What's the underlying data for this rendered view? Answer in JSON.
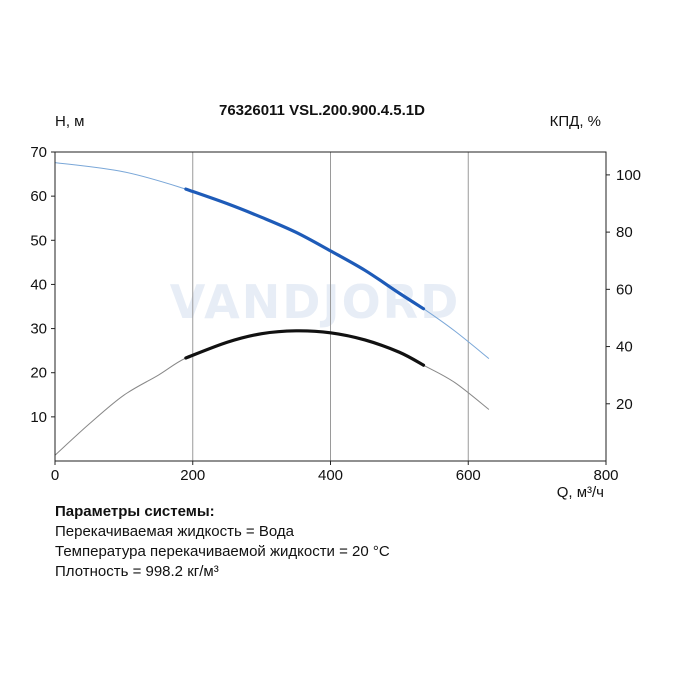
{
  "chart_data": {
    "type": "line",
    "title": "76326011 VSL.200.900.4.5.1D",
    "xlabel": "Q, м³/ч",
    "ylabel_left": "H, м",
    "ylabel_right": "КПД, %",
    "xlim": [
      0,
      800
    ],
    "ylim_left": [
      0,
      70
    ],
    "ylim_right": [
      0,
      108
    ],
    "x_ticks": [
      "0",
      "200",
      "400",
      "600",
      "800"
    ],
    "y_ticks_left": [
      "10",
      "20",
      "30",
      "40",
      "50",
      "60",
      "70"
    ],
    "y_ticks_right": [
      "20",
      "40",
      "60",
      "80",
      "100"
    ],
    "grid": "vertical",
    "watermark": "VANDJORD",
    "series": [
      {
        "axis": "left",
        "color": "#1e5bb8",
        "thin_color": "#7aa7d8",
        "operating_range": [
          190,
          535
        ],
        "x": [
          0,
          100,
          190,
          250,
          300,
          350,
          400,
          450,
          500,
          535,
          580,
          630
        ],
        "y": [
          67.6,
          65.5,
          61.6,
          58.3,
          55.2,
          51.8,
          47.6,
          43.2,
          38.0,
          34.5,
          29.5,
          23.2
        ]
      },
      {
        "axis": "right",
        "color": "#111111",
        "thin_color": "#888888",
        "operating_range": [
          190,
          535
        ],
        "x": [
          0,
          50,
          100,
          150,
          190,
          250,
          300,
          350,
          400,
          450,
          500,
          535,
          580,
          630
        ],
        "y": [
          2,
          13,
          23,
          30,
          36,
          41.5,
          44.5,
          45.5,
          44.8,
          42.3,
          38,
          33.5,
          27.5,
          18
        ]
      }
    ]
  },
  "params": {
    "title": "Параметры системы:",
    "lines": [
      "Перекачиваемая жидкость = Вода",
      "Температура перекачиваемой жидкости = 20 °C",
      "Плотность = 998.2 кг/м³"
    ]
  }
}
